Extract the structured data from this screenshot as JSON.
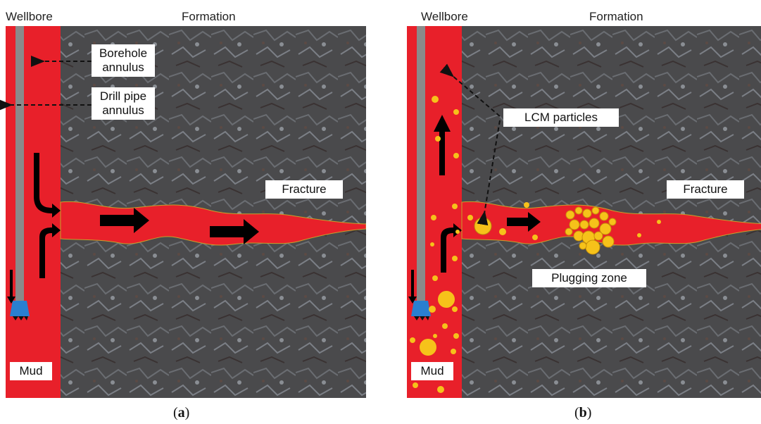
{
  "panel_a": {
    "header_left": "Wellbore",
    "header_right": "Formation",
    "labels": {
      "borehole_line1": "Borehole",
      "borehole_line2": "annulus",
      "drillpipe_line1": "Drill pipe",
      "drillpipe_line2": "annulus",
      "fracture": "Fracture",
      "mud": "Mud"
    },
    "caption_open": "(",
    "caption_letter": "a",
    "caption_close": ")"
  },
  "panel_b": {
    "header_left": "Wellbore",
    "header_right": "Formation",
    "labels": {
      "lcm": "LCM particles",
      "fracture": "Fracture",
      "plugging": "Plugging zone",
      "mud": "Mud"
    },
    "caption_open": "(",
    "caption_letter": "b",
    "caption_close": ")"
  },
  "colors": {
    "mud": "#e8202a",
    "formation": "#4a4a4c",
    "pipe": "#8a8a8a",
    "bit": "#2a7fd0",
    "lcm_particle": "#f6c21a",
    "arrow": "#000000"
  },
  "icons": {
    "flow_arrow": "black-arrow-icon",
    "drill_bit": "drill-bit-icon",
    "particle": "lcm-particle-icon"
  }
}
